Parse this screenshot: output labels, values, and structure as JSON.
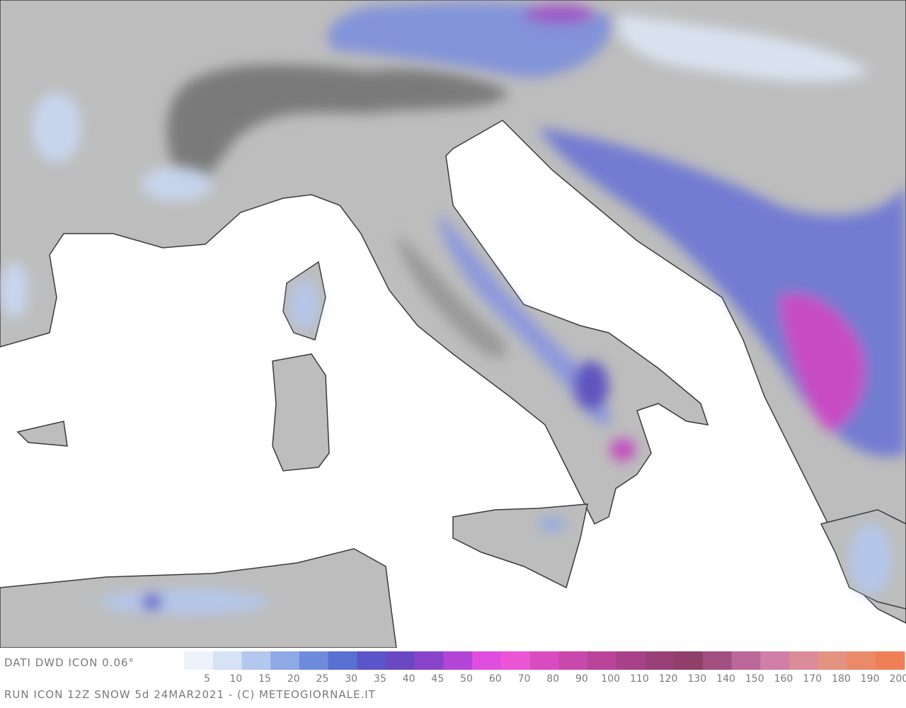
{
  "footer": {
    "source": "DATI DWD ICON 0.06°",
    "run": "RUN ICON 12Z SNOW 5d 24MAR2021 - (C) METEOGIORNALE.IT",
    "scale": {
      "ticks": [
        5,
        10,
        15,
        20,
        25,
        30,
        35,
        40,
        45,
        50,
        60,
        70,
        80,
        90,
        100,
        110,
        120,
        130,
        140,
        150,
        160,
        170,
        180,
        190,
        200
      ],
      "colors": [
        "#eef3fb",
        "#d6e2f6",
        "#b4c8ef",
        "#8ea9e6",
        "#6f8bdc",
        "#5a6fd2",
        "#5a55c8",
        "#6a48c4",
        "#8a44cc",
        "#b346d6",
        "#e04ee0",
        "#ec56d6",
        "#d94cc0",
        "#c948ac",
        "#b9449a",
        "#a8418a",
        "#9a4078",
        "#8f3f6a",
        "#a25080",
        "#bb6898",
        "#cf7fa8",
        "#dc8c98",
        "#e39380",
        "#ea8a68",
        "#ef7f55"
      ]
    }
  }
}
